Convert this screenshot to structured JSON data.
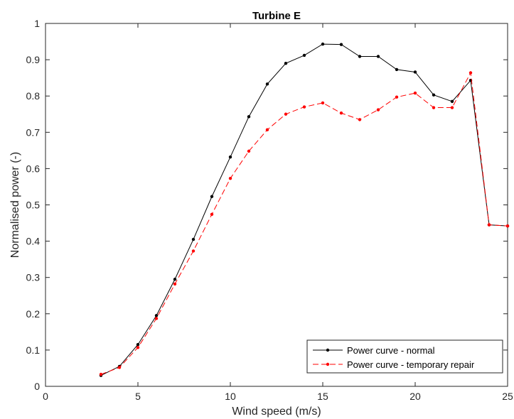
{
  "chart_data": {
    "type": "line",
    "title": "Turbine E",
    "xlabel": "Wind speed (m/s)",
    "ylabel": "Normalised power (-)",
    "xlim": [
      0,
      25
    ],
    "ylim": [
      0,
      1
    ],
    "xticks": [
      0,
      5,
      10,
      15,
      20,
      25
    ],
    "yticks": [
      0,
      0.1,
      0.2,
      0.3,
      0.4,
      0.5,
      0.6,
      0.7,
      0.8,
      0.9,
      1
    ],
    "grid": false,
    "legend_position": "bottom-right",
    "x": [
      3,
      4,
      5,
      6,
      7,
      8,
      9,
      10,
      11,
      12,
      13,
      14,
      15,
      16,
      17,
      18,
      19,
      20,
      21,
      22,
      23,
      24,
      25
    ],
    "series": [
      {
        "name": "Power curve - normal",
        "color": "#000000",
        "style": "solid",
        "marker": "dot",
        "values": [
          0.03,
          0.055,
          0.115,
          0.195,
          0.295,
          0.405,
          0.523,
          0.632,
          0.743,
          0.833,
          0.89,
          0.912,
          0.943,
          0.942,
          0.909,
          0.909,
          0.873,
          0.866,
          0.803,
          0.785,
          0.843,
          0.445,
          0.442
        ]
      },
      {
        "name": "Power curve - temporary repair",
        "color": "#ff0000",
        "style": "dashed",
        "marker": "dot",
        "values": [
          0.033,
          0.052,
          0.107,
          0.187,
          0.282,
          0.373,
          0.474,
          0.573,
          0.648,
          0.707,
          0.75,
          0.77,
          0.781,
          0.753,
          0.735,
          0.762,
          0.797,
          0.808,
          0.768,
          0.768,
          0.864,
          0.445,
          0.442
        ]
      }
    ]
  }
}
